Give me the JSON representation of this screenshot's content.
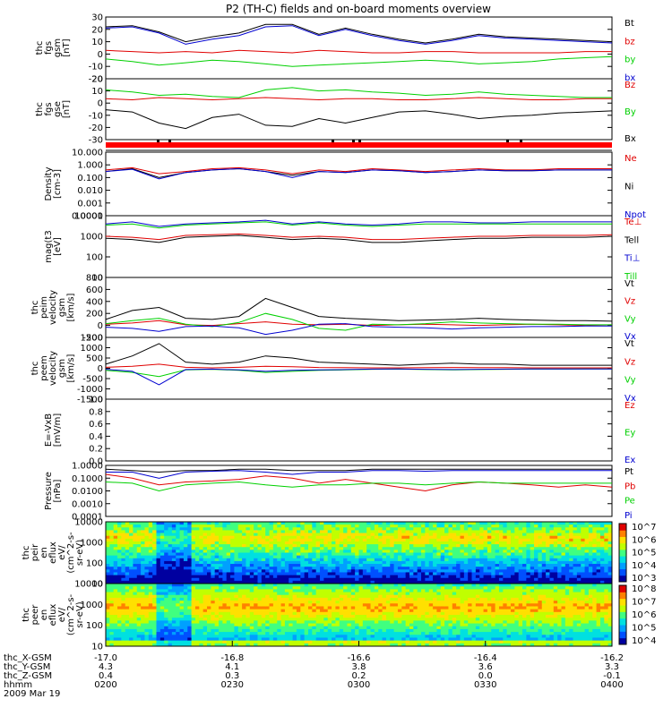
{
  "title": "P2 (TH-C) fields and on-board moments overview",
  "colors": {
    "black": "#000000",
    "red": "#e00000",
    "green": "#00d000",
    "blue": "#0000d0"
  },
  "chart_data": [
    {
      "type": "line",
      "panel": "fgs_gsm",
      "ylabel": [
        "thc",
        "fgs",
        "gsm",
        "[nT]"
      ],
      "ylim": [
        -20,
        30
      ],
      "yticks": [
        "30",
        "20",
        "10",
        "0",
        "-10",
        "-20"
      ],
      "series": [
        {
          "name": "Bt",
          "color": "#000000",
          "values": [
            22,
            23,
            18,
            10,
            14,
            17,
            24,
            24,
            16,
            21,
            16,
            12,
            9,
            12,
            16,
            14,
            13,
            12,
            11,
            10
          ]
        },
        {
          "name": "bz",
          "color": "#e00000",
          "values": [
            3,
            2,
            1,
            2,
            1,
            3,
            2,
            1,
            3,
            2,
            1,
            1,
            2,
            2,
            1,
            1,
            1,
            1,
            2,
            2
          ]
        },
        {
          "name": "by",
          "color": "#00d000",
          "values": [
            -4,
            -6,
            -9,
            -7,
            -5,
            -6,
            -8,
            -10,
            -9,
            -8,
            -7,
            -6,
            -5,
            -6,
            -8,
            -7,
            -6,
            -4,
            -3,
            -2
          ]
        },
        {
          "name": "bx",
          "color": "#0000d0",
          "values": [
            21,
            22,
            17,
            8,
            12,
            15,
            22,
            23,
            15,
            20,
            15,
            11,
            8,
            11,
            15,
            13,
            12,
            11,
            10,
            9
          ]
        }
      ]
    },
    {
      "type": "line",
      "panel": "fgs_gse",
      "ylabel": [
        "thc",
        "fgs",
        "gse",
        "[nT]"
      ],
      "ylim": [
        -35,
        20
      ],
      "yticks": [
        "20",
        "10",
        "0",
        "-10",
        "-20",
        "-30"
      ],
      "series": [
        {
          "name": "Bz",
          "color": "#e00000",
          "values": [
            2,
            1,
            3,
            2,
            1,
            2,
            3,
            2,
            1,
            2,
            2,
            1,
            1,
            2,
            3,
            2,
            1,
            1,
            2,
            2
          ]
        },
        {
          "name": "By",
          "color": "#00d000",
          "values": [
            10,
            8,
            5,
            6,
            4,
            3,
            10,
            12,
            9,
            10,
            8,
            7,
            5,
            6,
            8,
            6,
            5,
            4,
            3,
            3
          ]
        },
        {
          "name": "Bx",
          "color": "#000000",
          "values": [
            -8,
            -10,
            -20,
            -25,
            -15,
            -12,
            -22,
            -23,
            -16,
            -20,
            -15,
            -10,
            -9,
            -12,
            -16,
            -14,
            -13,
            -11,
            -10,
            -9
          ]
        }
      ]
    },
    {
      "type": "line",
      "panel": "density",
      "ylabel": [
        "Density",
        "[cm-3]"
      ],
      "scale": "log",
      "ylim": [
        0.0001,
        10
      ],
      "yticks": [
        "10.000",
        "1.000",
        "0.100",
        "0.010",
        "0.001",
        "0.0001"
      ],
      "series": [
        {
          "name": "Ne",
          "color": "#e00000",
          "values": [
            0.4,
            0.6,
            0.2,
            0.3,
            0.5,
            0.6,
            0.4,
            0.2,
            0.4,
            0.3,
            0.5,
            0.4,
            0.3,
            0.4,
            0.5,
            0.4,
            0.4,
            0.5,
            0.5,
            0.5
          ]
        },
        {
          "name": "Ni",
          "color": "#000000",
          "values": [
            0.3,
            0.5,
            0.1,
            0.25,
            0.4,
            0.5,
            0.3,
            0.15,
            0.3,
            0.25,
            0.4,
            0.35,
            0.25,
            0.3,
            0.4,
            0.35,
            0.35,
            0.4,
            0.4,
            0.4
          ]
        },
        {
          "name": "Npot",
          "color": "#0000d0",
          "values": [
            0.3,
            0.45,
            0.08,
            0.25,
            0.4,
            0.5,
            0.3,
            0.1,
            0.3,
            0.25,
            0.4,
            0.35,
            0.25,
            0.3,
            0.4,
            0.35,
            0.35,
            0.4,
            0.4,
            0.4
          ]
        }
      ]
    },
    {
      "type": "line",
      "panel": "temperature",
      "ylabel": [
        "mag(t3",
        "[eV]"
      ],
      "scale": "log",
      "ylim": [
        10,
        10000
      ],
      "yticks": [
        "10000",
        "1000",
        "100",
        "10"
      ],
      "series": [
        {
          "name": "Te⊥",
          "color": "#e00000",
          "values": [
            1000,
            900,
            700,
            1100,
            1200,
            1300,
            1100,
            900,
            1000,
            900,
            700,
            700,
            800,
            900,
            1000,
            1000,
            1100,
            1100,
            1100,
            1200
          ]
        },
        {
          "name": "Tell",
          "color": "#000000",
          "values": [
            800,
            700,
            500,
            900,
            1000,
            1100,
            900,
            700,
            800,
            700,
            500,
            500,
            600,
            700,
            800,
            800,
            900,
            900,
            900,
            1000
          ]
        },
        {
          "name": "Ti⊥",
          "color": "#0000d0",
          "values": [
            4000,
            5000,
            3000,
            4000,
            4500,
            5000,
            6000,
            4000,
            5000,
            4000,
            3500,
            4000,
            5000,
            5000,
            4500,
            4500,
            5000,
            5000,
            5000,
            5000
          ]
        },
        {
          "name": "Till",
          "color": "#00d000",
          "values": [
            3500,
            4000,
            2500,
            3500,
            4000,
            4500,
            5000,
            3500,
            4500,
            3500,
            3000,
            3500,
            4000,
            4000,
            4000,
            4000,
            4000,
            4000,
            4000,
            4000
          ]
        }
      ]
    },
    {
      "type": "line",
      "panel": "peim_velocity",
      "ylabel": [
        "thc",
        "peim",
        "velocity",
        "gsm",
        "[km/s]"
      ],
      "ylim": [
        -200,
        800
      ],
      "yticks": [
        "800",
        "600",
        "400",
        "200",
        "0",
        "-200"
      ],
      "series": [
        {
          "name": "Vt",
          "color": "#000000",
          "values": [
            100,
            250,
            300,
            120,
            100,
            150,
            450,
            300,
            150,
            120,
            100,
            80,
            90,
            100,
            120,
            100,
            90,
            80,
            80,
            70
          ]
        },
        {
          "name": "Vz",
          "color": "#e00000",
          "values": [
            20,
            40,
            80,
            10,
            0,
            30,
            60,
            20,
            10,
            20,
            0,
            10,
            20,
            10,
            0,
            10,
            20,
            10,
            0,
            10
          ]
        },
        {
          "name": "Vy",
          "color": "#00d000",
          "values": [
            30,
            80,
            120,
            20,
            -20,
            50,
            200,
            100,
            -50,
            -80,
            20,
            10,
            30,
            60,
            40,
            30,
            20,
            20,
            10,
            10
          ]
        },
        {
          "name": "Vx",
          "color": "#0000d0",
          "values": [
            -30,
            -50,
            -100,
            -20,
            -10,
            -40,
            -150,
            -80,
            20,
            30,
            -20,
            -30,
            -40,
            -60,
            -40,
            -30,
            -20,
            -20,
            -10,
            -10
          ]
        }
      ]
    },
    {
      "type": "line",
      "panel": "peem_velocity",
      "ylabel": [
        "thc",
        "peem",
        "velocity",
        "gsm",
        "[km/s]"
      ],
      "ylim": [
        -1500,
        1500
      ],
      "yticks": [
        "1500",
        "1000",
        "500",
        "0",
        "-500",
        "-1000",
        "-1500"
      ],
      "series": [
        {
          "name": "Vt",
          "color": "#000000",
          "values": [
            200,
            600,
            1200,
            300,
            200,
            300,
            600,
            500,
            300,
            250,
            200,
            150,
            200,
            250,
            200,
            200,
            150,
            150,
            150,
            150
          ]
        },
        {
          "name": "Vz",
          "color": "#e00000",
          "values": [
            50,
            100,
            200,
            50,
            20,
            50,
            100,
            80,
            40,
            30,
            20,
            20,
            30,
            40,
            30,
            30,
            20,
            20,
            20,
            20
          ]
        },
        {
          "name": "Vy",
          "color": "#00d000",
          "values": [
            -100,
            -200,
            -400,
            -80,
            -50,
            -100,
            -200,
            -150,
            -100,
            -80,
            -50,
            -40,
            -60,
            -80,
            -60,
            -50,
            -40,
            -40,
            -30,
            -30
          ]
        },
        {
          "name": "Vx",
          "color": "#0000d0",
          "values": [
            -50,
            -150,
            -800,
            -60,
            -40,
            -80,
            -150,
            -100,
            -80,
            -60,
            -40,
            -30,
            -50,
            -60,
            -50,
            -40,
            -30,
            -30,
            -30,
            -30
          ]
        }
      ]
    },
    {
      "type": "line",
      "panel": "efield",
      "ylabel": [
        "E=-VxB",
        "[mV/m]"
      ],
      "ylim": [
        0,
        1
      ],
      "yticks": [
        "1.0",
        "0.8",
        "0.6",
        "0.4",
        "0.2",
        "0.0"
      ],
      "series": [
        {
          "name": "Ez",
          "color": "#e00000",
          "values": []
        },
        {
          "name": "Ey",
          "color": "#00d000",
          "values": []
        },
        {
          "name": "Ex",
          "color": "#0000d0",
          "values": []
        }
      ]
    },
    {
      "type": "line",
      "panel": "pressure",
      "ylabel": [
        "Pressure",
        "[nPa]"
      ],
      "scale": "log",
      "ylim": [
        0.0001,
        1
      ],
      "yticks": [
        "1.0000",
        "0.1000",
        "0.0100",
        "0.0010",
        "0.0001"
      ],
      "series": [
        {
          "name": "Pt",
          "color": "#000000",
          "values": [
            0.5,
            0.4,
            0.3,
            0.4,
            0.4,
            0.5,
            0.5,
            0.4,
            0.4,
            0.4,
            0.5,
            0.5,
            0.5,
            0.5,
            0.5,
            0.5,
            0.5,
            0.5,
            0.5,
            0.5
          ]
        },
        {
          "name": "Pb",
          "color": "#e00000",
          "values": [
            0.2,
            0.1,
            0.03,
            0.05,
            0.06,
            0.08,
            0.15,
            0.1,
            0.04,
            0.08,
            0.04,
            0.02,
            0.01,
            0.03,
            0.05,
            0.04,
            0.03,
            0.02,
            0.03,
            0.02
          ]
        },
        {
          "name": "Pe",
          "color": "#00d000",
          "values": [
            0.05,
            0.04,
            0.01,
            0.03,
            0.04,
            0.05,
            0.03,
            0.02,
            0.03,
            0.03,
            0.04,
            0.04,
            0.03,
            0.04,
            0.05,
            0.04,
            0.04,
            0.04,
            0.04,
            0.04
          ]
        },
        {
          "name": "Pi",
          "color": "#0000d0",
          "values": [
            0.3,
            0.3,
            0.1,
            0.3,
            0.35,
            0.4,
            0.3,
            0.2,
            0.3,
            0.3,
            0.4,
            0.4,
            0.35,
            0.4,
            0.4,
            0.4,
            0.4,
            0.4,
            0.4,
            0.4
          ]
        }
      ]
    },
    {
      "type": "heatmap",
      "panel": "peir_en_eflux",
      "ylabel": [
        "thc",
        "peir",
        "en",
        "eflux",
        "eV/",
        "(cm^2-s-",
        "sr-eV)"
      ],
      "scale": "log",
      "ylim": [
        10,
        10000
      ],
      "yticks": [
        "10000",
        "1000",
        "100",
        "10"
      ],
      "colorbar_ticks": [
        "10^7",
        "10^6",
        "10^5",
        "10^4",
        "10^3"
      ]
    },
    {
      "type": "heatmap",
      "panel": "peer_en_eflux",
      "ylabel": [
        "thc",
        "peer",
        "en",
        "eflux",
        "eV/",
        "(cm^2-s-",
        "sr-eV)"
      ],
      "scale": "log",
      "ylim": [
        10,
        10000
      ],
      "yticks": [
        "10000",
        "1000",
        "100",
        "10"
      ],
      "colorbar_ticks": [
        "10^8",
        "10^7",
        "10^6",
        "10^5",
        "10^4"
      ]
    }
  ],
  "xaxis": {
    "rows": [
      {
        "label": "thc_X-GSM",
        "values": [
          "-17.0",
          "-16.8",
          "-16.6",
          "-16.4",
          "-16.2"
        ]
      },
      {
        "label": "thc_Y-GSM",
        "values": [
          "4.3",
          "4.1",
          "3.8",
          "3.6",
          "3.3"
        ]
      },
      {
        "label": "thc_Z-GSM",
        "values": [
          "0.4",
          "0.3",
          "0.2",
          "0.0",
          "-0.1"
        ]
      },
      {
        "label": "hhmm",
        "values": [
          "0200",
          "0230",
          "0300",
          "0330",
          "0400"
        ]
      }
    ],
    "date": "2009 Mar 19"
  }
}
